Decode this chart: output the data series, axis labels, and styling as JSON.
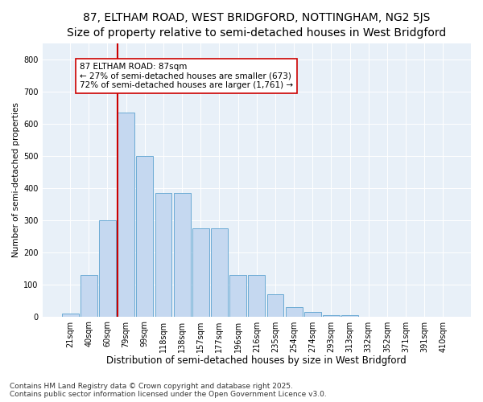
{
  "title1": "87, ELTHAM ROAD, WEST BRIDGFORD, NOTTINGHAM, NG2 5JS",
  "title2": "Size of property relative to semi-detached houses in West Bridgford",
  "xlabel": "Distribution of semi-detached houses by size in West Bridgford",
  "ylabel": "Number of semi-detached properties",
  "categories": [
    "21sqm",
    "40sqm",
    "60sqm",
    "79sqm",
    "99sqm",
    "118sqm",
    "138sqm",
    "157sqm",
    "177sqm",
    "196sqm",
    "216sqm",
    "235sqm",
    "254sqm",
    "274sqm",
    "293sqm",
    "313sqm",
    "332sqm",
    "352sqm",
    "371sqm",
    "391sqm",
    "410sqm"
  ],
  "values": [
    8,
    130,
    300,
    635,
    500,
    385,
    385,
    275,
    275,
    130,
    130,
    70,
    30,
    13,
    5,
    5,
    0,
    0,
    0,
    0,
    0
  ],
  "bar_color": "#c5d8f0",
  "bar_edge_color": "#6aaad4",
  "vline_color": "#cc0000",
  "vline_x_idx": 3,
  "annotation_line1": "87 ELTHAM ROAD: 87sqm",
  "annotation_line2": "← 27% of semi-detached houses are smaller (673)",
  "annotation_line3": "72% of semi-detached houses are larger (1,761) →",
  "annotation_box_color": "#ffffff",
  "annotation_box_edge": "#cc0000",
  "ylim": [
    0,
    850
  ],
  "yticks": [
    0,
    100,
    200,
    300,
    400,
    500,
    600,
    700,
    800
  ],
  "background_color": "#e8f0f8",
  "footer1": "Contains HM Land Registry data © Crown copyright and database right 2025.",
  "footer2": "Contains public sector information licensed under the Open Government Licence v3.0.",
  "title1_fontsize": 10,
  "title2_fontsize": 9,
  "xlabel_fontsize": 8.5,
  "ylabel_fontsize": 7.5,
  "tick_fontsize": 7,
  "footer_fontsize": 6.5,
  "annot_fontsize": 7.5
}
